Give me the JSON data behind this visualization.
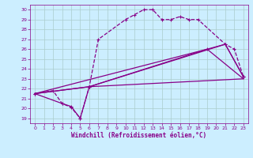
{
  "xlabel": "Windchill (Refroidissement éolien,°C)",
  "xlim": [
    -0.5,
    23.5
  ],
  "ylim": [
    18.5,
    30.5
  ],
  "yticks": [
    19,
    20,
    21,
    22,
    23,
    24,
    25,
    26,
    27,
    28,
    29,
    30
  ],
  "xticks": [
    0,
    1,
    2,
    3,
    4,
    5,
    6,
    7,
    8,
    9,
    10,
    11,
    12,
    13,
    14,
    15,
    16,
    17,
    18,
    19,
    20,
    21,
    22,
    23
  ],
  "bg_color": "#cceeff",
  "grid_color": "#aacccc",
  "line_color": "#880088",
  "line1_x": [
    0,
    2,
    3,
    4,
    5,
    6,
    7,
    10,
    11,
    12,
    13,
    14,
    15,
    16,
    17,
    18,
    21,
    22,
    23
  ],
  "line1_y": [
    21.5,
    21.8,
    20.5,
    20.1,
    19.0,
    22.2,
    27.0,
    29.0,
    29.5,
    30.0,
    30.0,
    29.0,
    29.0,
    29.3,
    29.0,
    29.0,
    26.5,
    26.0,
    23.2
  ],
  "line2_x": [
    0,
    3,
    4,
    5,
    6,
    19,
    21,
    23
  ],
  "line2_y": [
    21.5,
    20.5,
    20.2,
    19.0,
    22.2,
    26.0,
    26.5,
    23.2
  ],
  "line3_x": [
    0,
    6,
    23
  ],
  "line3_y": [
    21.5,
    22.2,
    23.0
  ],
  "line4_x": [
    0,
    6,
    21,
    23
  ],
  "line4_y": [
    21.5,
    22.2,
    26.5,
    23.2
  ],
  "line5_x": [
    0,
    19,
    23
  ],
  "line5_y": [
    21.5,
    26.0,
    23.0
  ]
}
